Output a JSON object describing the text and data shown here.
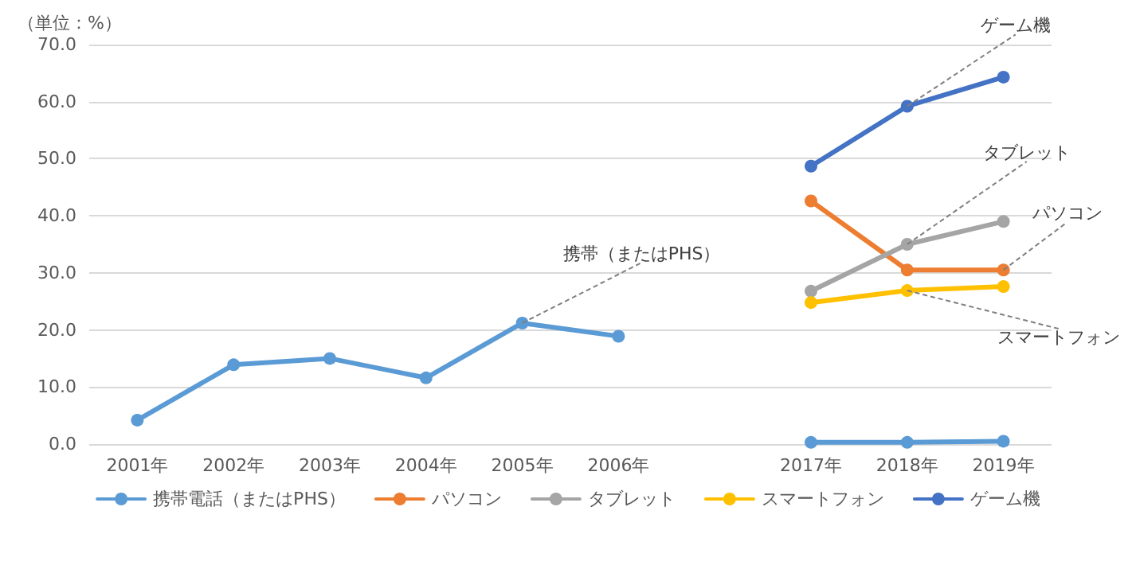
{
  "chart_data": {
    "type": "line",
    "ylabel": "（単位：%）",
    "categories": [
      "2001年",
      "2002年",
      "2003年",
      "2004年",
      "2005年",
      "2006年",
      null,
      "2017年",
      "2018年",
      "2019年"
    ],
    "series": [
      {
        "name": "携帯電話（またはPHS）",
        "color": "#5b9bd5",
        "values": [
          4.2,
          13.9,
          15.0,
          11.6,
          21.2,
          18.9,
          null,
          0.3,
          0.3,
          0.5
        ]
      },
      {
        "name": "パソコン",
        "color": "#ed7d31",
        "values": [
          null,
          null,
          null,
          null,
          null,
          null,
          null,
          42.6,
          30.5,
          30.5
        ]
      },
      {
        "name": "タブレット",
        "color": "#a5a5a5",
        "values": [
          null,
          null,
          null,
          null,
          null,
          null,
          null,
          26.8,
          35.0,
          39.0
        ]
      },
      {
        "name": "スマートフォン",
        "color": "#ffc000",
        "values": [
          null,
          null,
          null,
          null,
          null,
          null,
          null,
          24.8,
          26.9,
          27.6
        ]
      },
      {
        "name": "ゲーム機",
        "color": "#4472c4",
        "values": [
          null,
          null,
          null,
          null,
          null,
          null,
          null,
          48.7,
          59.2,
          64.3
        ]
      }
    ],
    "ylim": [
      0,
      70
    ],
    "yticks": [
      {
        "value": 0,
        "label": "0.0"
      },
      {
        "value": 10,
        "label": "10.0"
      },
      {
        "value": 20,
        "label": "20.0"
      },
      {
        "value": 30,
        "label": "30.0"
      },
      {
        "value": 40,
        "label": "40.0"
      },
      {
        "value": 50,
        "label": "50.0"
      },
      {
        "value": 60,
        "label": "60.0"
      },
      {
        "value": 70,
        "label": "70.0"
      }
    ],
    "grid": "y",
    "legend": "bottom",
    "marker": "circle",
    "line_style": "solid",
    "annotations": [
      {
        "text": "携帯（またはPHS）",
        "x": "2005年",
        "y": 21.2
      },
      {
        "text": "ゲーム機",
        "x": "2018年",
        "y": 59.2
      },
      {
        "text": "タブレット",
        "x": "2018年",
        "y": 35.0
      },
      {
        "text": "パソコン",
        "x": "2019年",
        "y": 30.5
      },
      {
        "text": "スマートフォン",
        "x": "2018年",
        "y": 26.9
      }
    ]
  }
}
